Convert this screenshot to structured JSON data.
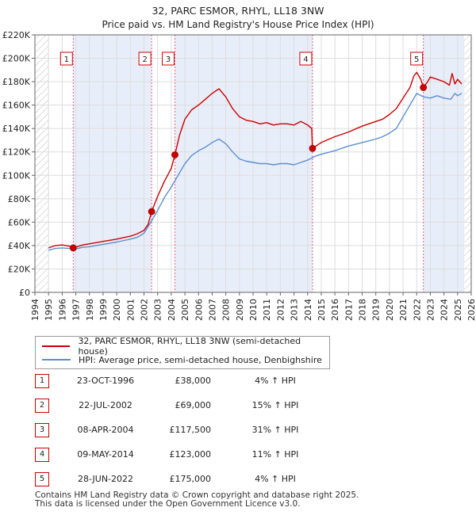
{
  "title_line1": "32, PARC ESMOR, RHYL, LL18 3NW",
  "title_line2": "Price paid vs. HM Land Registry's House Price Index (HPI)",
  "legend": {
    "property_label": "32, PARC ESMOR, RHYL, LL18 3NW (semi-detached house)",
    "hpi_label": "HPI: Average price, semi-detached house, Denbighshire"
  },
  "transactions": [
    {
      "num": "1",
      "date": "23-OCT-1996",
      "price": "£38,000",
      "hpi": "4% ↑ HPI"
    },
    {
      "num": "2",
      "date": "22-JUL-2002",
      "price": "£69,000",
      "hpi": "15% ↑ HPI"
    },
    {
      "num": "3",
      "date": "08-APR-2004",
      "price": "£117,500",
      "hpi": "31% ↑ HPI"
    },
    {
      "num": "4",
      "date": "09-MAY-2014",
      "price": "£123,000",
      "hpi": "11% ↑ HPI"
    },
    {
      "num": "5",
      "date": "28-JUN-2022",
      "price": "£175,000",
      "hpi": "4% ↑ HPI"
    }
  ],
  "footer_line1": "Contains HM Land Registry data © Crown copyright and database right 2025.",
  "footer_line2": "This data is licensed under the Open Government Licence v3.0.",
  "colors": {
    "property": "#cc0000",
    "hpi": "#5b8fd0",
    "shade": "#e8eef9",
    "vline": "#e06080"
  },
  "chart_data": {
    "type": "line",
    "title": "32, PARC ESMOR, RHYL, LL18 3NW",
    "subtitle": "Price paid vs. HM Land Registry's House Price Index (HPI)",
    "xlim": [
      1994,
      2026
    ],
    "ylim": [
      0,
      220000
    ],
    "x_ticks": [
      1994,
      1995,
      1996,
      1997,
      1998,
      1999,
      2000,
      2001,
      2002,
      2003,
      2004,
      2005,
      2006,
      2007,
      2008,
      2009,
      2010,
      2011,
      2012,
      2013,
      2014,
      2015,
      2016,
      2017,
      2018,
      2019,
      2020,
      2021,
      2022,
      2023,
      2024,
      2025,
      2026
    ],
    "y_ticks": [
      0,
      20000,
      40000,
      60000,
      80000,
      100000,
      120000,
      140000,
      160000,
      180000,
      200000,
      220000
    ],
    "y_tick_labels": [
      "£0",
      "£20K",
      "£40K",
      "£60K",
      "£80K",
      "£100K",
      "£120K",
      "£140K",
      "£160K",
      "£180K",
      "£200K",
      "£220K"
    ],
    "data_start": 1995.0,
    "data_end": 2025.5,
    "shaded_periods": [
      [
        1996.81,
        2002.56
      ],
      [
        2004.27,
        2014.36
      ],
      [
        2022.49,
        2025.5
      ]
    ],
    "hatched_ranges": [
      [
        1994,
        1995.0
      ],
      [
        2025.5,
        2026
      ]
    ],
    "series": [
      {
        "name": "32, PARC ESMOR, RHYL, LL18 3NW (semi-detached house)",
        "color": "#cc0000",
        "x": [
          1995.0,
          1995.5,
          1996.0,
          1996.5,
          1996.81,
          1997.5,
          1998.0,
          1999.0,
          2000.0,
          2001.0,
          2001.5,
          2002.0,
          2002.3,
          2002.56,
          2003.0,
          2003.5,
          2004.0,
          2004.27,
          2004.6,
          2005.0,
          2005.5,
          2006.0,
          2006.5,
          2007.0,
          2007.5,
          2008.0,
          2008.5,
          2009.0,
          2009.5,
          2010.0,
          2010.5,
          2011.0,
          2011.5,
          2012.0,
          2012.5,
          2013.0,
          2013.5,
          2014.0,
          2014.3,
          2014.36,
          2015.0,
          2016.0,
          2017.0,
          2018.0,
          2019.0,
          2019.5,
          2020.0,
          2020.5,
          2021.0,
          2021.5,
          2021.8,
          2022.0,
          2022.3,
          2022.49,
          2022.8,
          2023.0,
          2023.5,
          2024.0,
          2024.4,
          2024.6,
          2024.8,
          2025.0,
          2025.3
        ],
        "y": [
          38000,
          40000,
          40500,
          39500,
          38000,
          40500,
          41500,
          43500,
          45500,
          48000,
          50000,
          53000,
          58000,
          69000,
          82000,
          95000,
          106000,
          117500,
          134000,
          148000,
          156000,
          160000,
          165000,
          170000,
          174000,
          167000,
          157000,
          150000,
          147000,
          146000,
          144000,
          145000,
          143000,
          144000,
          144000,
          143000,
          146000,
          143000,
          140000,
          123000,
          128000,
          133000,
          137000,
          142000,
          146000,
          148000,
          152000,
          157000,
          166000,
          175000,
          185000,
          188000,
          182000,
          175000,
          180000,
          184000,
          182000,
          180000,
          177000,
          187000,
          178000,
          182000,
          178000
        ]
      },
      {
        "name": "HPI: Average price, semi-detached house, Denbighshire",
        "color": "#5b8fd0",
        "x": [
          1995.0,
          1995.5,
          1996.0,
          1996.5,
          1997.0,
          1997.5,
          1998.0,
          1999.0,
          2000.0,
          2001.0,
          2001.5,
          2002.0,
          2002.5,
          2003.0,
          2003.5,
          2004.0,
          2004.5,
          2005.0,
          2005.5,
          2006.0,
          2006.5,
          2007.0,
          2007.5,
          2008.0,
          2008.5,
          2009.0,
          2009.5,
          2010.0,
          2010.5,
          2011.0,
          2011.5,
          2012.0,
          2012.5,
          2013.0,
          2013.5,
          2014.0,
          2014.5,
          2015.0,
          2016.0,
          2017.0,
          2018.0,
          2019.0,
          2019.5,
          2020.0,
          2020.5,
          2021.0,
          2021.5,
          2022.0,
          2022.5,
          2023.0,
          2023.5,
          2024.0,
          2024.5,
          2024.8,
          2025.0,
          2025.3
        ],
        "y": [
          36000,
          37500,
          38000,
          37500,
          37000,
          38500,
          39000,
          41000,
          43000,
          45500,
          47000,
          50500,
          60000,
          70000,
          81000,
          90000,
          100000,
          110000,
          117000,
          121000,
          124000,
          128000,
          131000,
          127000,
          120000,
          114000,
          112000,
          111000,
          110000,
          110000,
          109000,
          110000,
          110000,
          109000,
          111000,
          113000,
          116000,
          118000,
          121000,
          125000,
          128000,
          131000,
          133000,
          136000,
          140000,
          150000,
          160000,
          170000,
          167000,
          166000,
          168000,
          166000,
          165000,
          170000,
          168000,
          170000
        ]
      }
    ],
    "markers": [
      {
        "label": "1",
        "x": 1996.81,
        "y": 38000
      },
      {
        "label": "2",
        "x": 2002.56,
        "y": 69000
      },
      {
        "label": "3",
        "x": 2004.27,
        "y": 117500
      },
      {
        "label": "4",
        "x": 2014.36,
        "y": 123000
      },
      {
        "label": "5",
        "x": 2022.49,
        "y": 175000
      }
    ]
  }
}
